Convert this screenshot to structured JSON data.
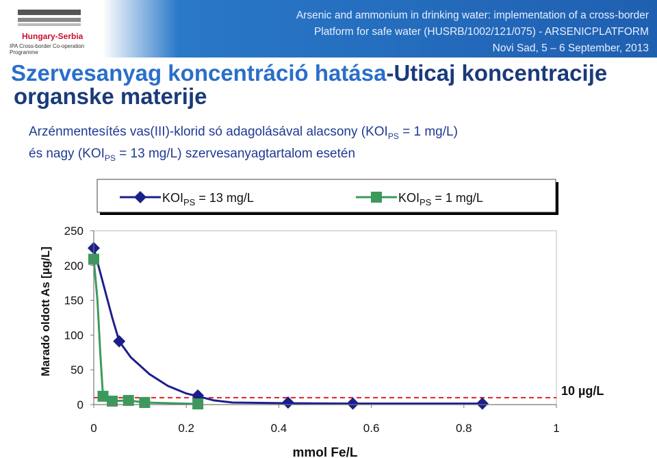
{
  "header": {
    "logo_title": "Hungary-Serbia",
    "logo_sub": "IPA Cross-border Co-operation Programme",
    "conf_line1": "Arsenic and ammonium in drinking water: implementation of a cross-border",
    "conf_line2": "Platform for safe water (HUSRB/1002/121/075) - ARSENICPLATFORM",
    "conf_line3": "Novi Sad, 5 – 6 September, 2013"
  },
  "slide": {
    "title_hu": "Szervesanyag koncentráció hatása",
    "title_sep": "-",
    "title_sr": "Uticaj koncentracije",
    "title_sr2": "organske materije",
    "subtitle1_pre": "Arzénmentesítés vas(III)-klorid só adagolásával alacsony (KOI",
    "subtitle1_sub": "PS",
    "subtitle1_post": " = 1 mg/L)",
    "subtitle2_pre": "és nagy (KOI",
    "subtitle2_sub": "PS",
    "subtitle2_post": " = 13 mg/L) szervesanyagtartalom esetén"
  },
  "chart_data": {
    "type": "line",
    "xlabel": "mmol Fe/L",
    "ylabel": "Maradó oldott As [µg/L]",
    "xlim": [
      0,
      1
    ],
    "ylim": [
      0,
      250
    ],
    "x_ticks": [
      "0",
      "0.2",
      "0.4",
      "0.6",
      "0.8",
      "1"
    ],
    "y_ticks": [
      "0",
      "50",
      "100",
      "150",
      "200",
      "250"
    ],
    "legend_position": "top",
    "series": [
      {
        "name_pre": "KOI",
        "name_sub": "PS",
        "name_post": " = 13 mg/L",
        "color": "#1b1f8a",
        "marker": "diamond",
        "points": [
          [
            0,
            225
          ],
          [
            0.055,
            91
          ],
          [
            0.225,
            13
          ],
          [
            0.42,
            3
          ],
          [
            0.56,
            1.5
          ],
          [
            0.84,
            1.5
          ]
        ],
        "curve": [
          [
            0,
            225
          ],
          [
            0.02,
            175
          ],
          [
            0.04,
            125
          ],
          [
            0.055,
            91
          ],
          [
            0.08,
            68
          ],
          [
            0.12,
            44
          ],
          [
            0.16,
            27
          ],
          [
            0.2,
            16
          ],
          [
            0.225,
            12
          ],
          [
            0.26,
            6
          ],
          [
            0.3,
            3
          ],
          [
            0.42,
            2
          ],
          [
            0.56,
            1.5
          ],
          [
            0.84,
            1.5
          ]
        ]
      },
      {
        "name_pre": "KOI",
        "name_sub": "PS",
        "name_post": " = 1 mg/L",
        "color": "#3b9a5b",
        "marker": "square",
        "points": [
          [
            0,
            209
          ],
          [
            0.02,
            12
          ],
          [
            0.04,
            5
          ],
          [
            0.075,
            6
          ],
          [
            0.11,
            3
          ],
          [
            0.225,
            1
          ]
        ],
        "curve": [
          [
            0,
            209
          ],
          [
            0.008,
            150
          ],
          [
            0.014,
            75
          ],
          [
            0.02,
            12
          ],
          [
            0.04,
            5
          ],
          [
            0.075,
            6
          ],
          [
            0.11,
            3
          ],
          [
            0.225,
            1
          ]
        ]
      }
    ],
    "reference_line": {
      "value": 10,
      "label": "10 µg/L",
      "color": "#e02020"
    }
  }
}
